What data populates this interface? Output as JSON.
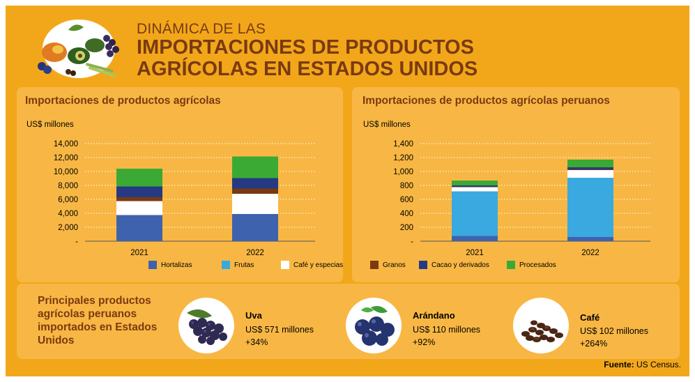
{
  "title": {
    "line1": "DINÁMICA DE LAS",
    "line2": "IMPORTACIONES DE PRODUCTOS",
    "line3": "AGRÍCOLAS EN ESTADOS UNIDOS"
  },
  "colors": {
    "background": "#F2A71B",
    "title": "#7A3A10"
  },
  "legend": [
    {
      "name": "Hortalizas",
      "color": "#3F62AE"
    },
    {
      "name": "Frutas",
      "color": "#39A9E0"
    },
    {
      "name": "Café y especias",
      "color": "#FFFFFF"
    },
    {
      "name": "Granos",
      "color": "#7A3A10"
    },
    {
      "name": "Cacao y derivados",
      "color": "#263A84"
    },
    {
      "name": "Procesados",
      "color": "#3BAA35"
    }
  ],
  "chart_data": [
    {
      "type": "bar",
      "stacked": true,
      "title": "Importaciones de productos agrícolas",
      "ylabel": "US$ millones",
      "categories": [
        "2021",
        "2022"
      ],
      "yticks": [
        "-",
        "2,000",
        "4,000",
        "6,000",
        "8,000",
        "10,000",
        "12,000",
        "14,000"
      ],
      "ylim": [
        0,
        14000
      ],
      "series": [
        {
          "name": "Hortalizas",
          "values": [
            3750,
            3900
          ]
        },
        {
          "name": "Frutas",
          "values": [
            0,
            0
          ]
        },
        {
          "name": "Café y especias",
          "values": [
            2000,
            2900
          ]
        },
        {
          "name": "Granos",
          "values": [
            550,
            750
          ]
        },
        {
          "name": "Cacao y derivados",
          "values": [
            1550,
            1500
          ]
        },
        {
          "name": "Procesados",
          "values": [
            2550,
            3100
          ]
        }
      ]
    },
    {
      "type": "bar",
      "stacked": true,
      "title": "Importaciones de productos agrícolas peruanos",
      "ylabel": "US$ millones",
      "categories": [
        "2021",
        "2022"
      ],
      "yticks": [
        "-",
        "200",
        "400",
        "600",
        "800",
        "1,000",
        "1,200",
        "1,400"
      ],
      "ylim": [
        0,
        1400
      ],
      "series": [
        {
          "name": "Hortalizas",
          "values": [
            75,
            60
          ]
        },
        {
          "name": "Frutas",
          "values": [
            640,
            850
          ]
        },
        {
          "name": "Café y especias",
          "values": [
            60,
            110
          ]
        },
        {
          "name": "Granos",
          "values": [
            5,
            10
          ]
        },
        {
          "name": "Cacao y derivados",
          "values": [
            20,
            30
          ]
        },
        {
          "name": "Procesados",
          "values": [
            70,
            110
          ]
        }
      ]
    }
  ],
  "bottom": {
    "title": "Principales productos agrícolas peruanos importados en Estados Unidos",
    "products": [
      {
        "name": "Uva",
        "value": "US$ 571 millones",
        "change": "+34%"
      },
      {
        "name": "Arándano",
        "value": "US$ 110 millones",
        "change": "+92%"
      },
      {
        "name": "Café",
        "value": "US$ 102 millones",
        "change": "+264%"
      }
    ]
  },
  "source": {
    "label": "Fuente:",
    "text": "US Census."
  }
}
